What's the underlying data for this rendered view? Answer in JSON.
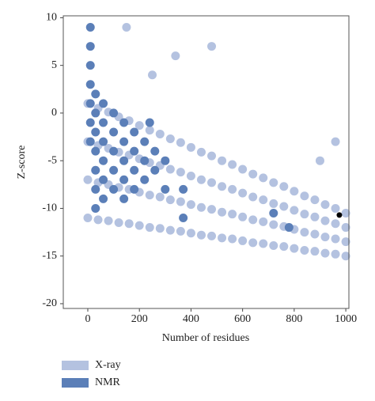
{
  "chart_data": {
    "type": "scatter",
    "x_label": "Number of residues",
    "y_label": "Z-score",
    "xlim": [
      -95,
      1012
    ],
    "ylim": [
      -20.5,
      10.2
    ],
    "xticks": [
      0,
      200,
      400,
      600,
      800,
      1000
    ],
    "yticks": [
      -20,
      -15,
      -10,
      -5,
      0,
      5,
      10
    ],
    "legend": "bottom-left",
    "series": [
      {
        "name": "X-ray",
        "color": "#b4c2e0",
        "x": [
          0,
          40,
          80,
          120,
          160,
          200,
          240,
          280,
          320,
          360,
          400,
          440,
          480,
          520,
          560,
          600,
          640,
          680,
          720,
          760,
          800,
          840,
          880,
          920,
          960,
          1000,
          0,
          40,
          80,
          120,
          160,
          200,
          240,
          280,
          320,
          360,
          400,
          440,
          480,
          520,
          560,
          600,
          640,
          680,
          720,
          760,
          800,
          840,
          880,
          920,
          960,
          1000,
          0,
          40,
          80,
          120,
          160,
          200,
          240,
          280,
          320,
          360,
          400,
          440,
          480,
          520,
          560,
          600,
          640,
          680,
          720,
          760,
          800,
          840,
          880,
          920,
          960,
          1000,
          0,
          40,
          80,
          120,
          160,
          200,
          240,
          280,
          320,
          360,
          400,
          440,
          480,
          520,
          560,
          600,
          640,
          680,
          720,
          760,
          800,
          840,
          880,
          920,
          960,
          1000,
          150,
          250,
          340,
          480,
          900,
          960
        ],
        "y": [
          1,
          0.5,
          0.1,
          -0.4,
          -0.8,
          -1.3,
          -1.8,
          -2.2,
          -2.7,
          -3.1,
          -3.6,
          -4.1,
          -4.5,
          -5,
          -5.4,
          -5.9,
          -6.4,
          -6.8,
          -7.3,
          -7.7,
          -8.2,
          -8.7,
          -9.1,
          -9.6,
          -10,
          -10.5,
          -3,
          -3.4,
          -3.7,
          -4.1,
          -4.4,
          -4.8,
          -5.2,
          -5.5,
          -5.9,
          -6.2,
          -6.6,
          -7,
          -7.3,
          -7.7,
          -8,
          -8.4,
          -8.8,
          -9.1,
          -9.5,
          -9.8,
          -10.2,
          -10.6,
          -10.9,
          -11.3,
          -11.6,
          -12,
          -7,
          -7.3,
          -7.5,
          -7.8,
          -8,
          -8.3,
          -8.6,
          -8.8,
          -9.1,
          -9.3,
          -9.6,
          -9.9,
          -10.1,
          -10.4,
          -10.6,
          -10.9,
          -11.2,
          -11.4,
          -11.7,
          -11.9,
          -12.2,
          -12.5,
          -12.7,
          -13,
          -13.2,
          -13.5,
          -11,
          -11.2,
          -11.3,
          -11.5,
          -11.6,
          -11.8,
          -12,
          -12.1,
          -12.3,
          -12.4,
          -12.6,
          -12.8,
          -12.9,
          -13.1,
          -13.2,
          -13.4,
          -13.6,
          -13.7,
          -13.9,
          -14,
          -14.2,
          -14.4,
          -14.5,
          -14.7,
          -14.8,
          -15,
          9,
          4,
          6,
          7,
          -5,
          -3
        ]
      },
      {
        "name": "NMR",
        "color": "#5b7fb8",
        "x": [
          10,
          10,
          10,
          10,
          10,
          10,
          10,
          30,
          30,
          30,
          30,
          30,
          30,
          30,
          60,
          60,
          60,
          60,
          60,
          60,
          100,
          100,
          100,
          100,
          100,
          140,
          140,
          140,
          140,
          140,
          180,
          180,
          180,
          180,
          220,
          220,
          220,
          260,
          260,
          300,
          300,
          370,
          370,
          240,
          720,
          780
        ],
        "y": [
          9,
          7,
          5,
          3,
          1,
          -1,
          -3,
          2,
          0,
          -2,
          -4,
          -6,
          -8,
          -10,
          1,
          -1,
          -3,
          -5,
          -7,
          -9,
          0,
          -2,
          -4,
          -6,
          -8,
          -1,
          -3,
          -5,
          -7,
          -9,
          -2,
          -4,
          -6,
          -8,
          -3,
          -5,
          -7,
          -4,
          -6,
          -5,
          -8,
          -8,
          -11,
          -1,
          -10.5,
          -12
        ]
      }
    ],
    "highlight": {
      "x": 975,
      "y": -10.7,
      "color": "#000000"
    }
  }
}
